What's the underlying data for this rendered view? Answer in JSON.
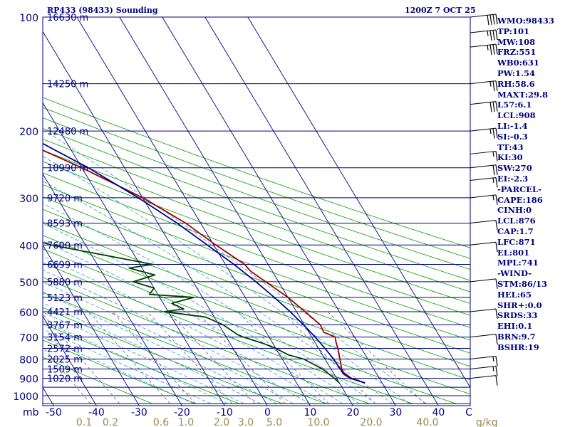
{
  "chart_data": {
    "type": "skew-t log-p sounding",
    "title_left": "RP433 (98433) Sounding",
    "title_right": "1200Z  7 OCT 25",
    "pressure_axis": {
      "unit_label": "mb",
      "ticks": [
        100,
        200,
        300,
        400,
        500,
        600,
        700,
        800,
        900,
        1000
      ],
      "range": [
        100,
        1050
      ]
    },
    "temperature_axis": {
      "unit_label": "C",
      "ticks": [
        -50,
        -40,
        -30,
        -20,
        -10,
        0,
        10,
        20,
        30,
        40
      ],
      "range": [
        -50,
        50
      ]
    },
    "mixing_ratio_labels": {
      "unit_label": "g/kg",
      "ticks": [
        "0.1",
        "0.2",
        "0.6",
        "1.0",
        "2.0",
        "3.0",
        "5.0",
        "10.0",
        "20.0",
        "40.0"
      ]
    },
    "height_levels": [
      {
        "p": 100,
        "label": "16630 m"
      },
      {
        "p": 150,
        "label": "14250 m"
      },
      {
        "p": 200,
        "label": "12480 m"
      },
      {
        "p": 250,
        "label": "10990 m"
      },
      {
        "p": 300,
        "label": "9720 m"
      },
      {
        "p": 350,
        "label": "8593 m"
      },
      {
        "p": 400,
        "label": "7600 m"
      },
      {
        "p": 450,
        "label": "6699 m"
      },
      {
        "p": 500,
        "label": "5880 m"
      },
      {
        "p": 550,
        "label": "5123 m"
      },
      {
        "p": 600,
        "label": "4421 m"
      },
      {
        "p": 650,
        "label": "3767 m"
      },
      {
        "p": 700,
        "label": "3154 m"
      },
      {
        "p": 750,
        "label": "2572 m"
      },
      {
        "p": 800,
        "label": "2025 m"
      },
      {
        "p": 850,
        "label": "1509 m"
      },
      {
        "p": 900,
        "label": "1020 m"
      }
    ],
    "series": [
      {
        "name": "temperature",
        "color": "#a00000",
        "points": [
          [
            925,
            26
          ],
          [
            900,
            23.5
          ],
          [
            870,
            22.5
          ],
          [
            850,
            22.5
          ],
          [
            800,
            23.5
          ],
          [
            750,
            24.5
          ],
          [
            720,
            25
          ],
          [
            700,
            25.5
          ],
          [
            680,
            23.5
          ],
          [
            650,
            23.7
          ],
          [
            600,
            22
          ],
          [
            550,
            20
          ],
          [
            500,
            17
          ],
          [
            470,
            15
          ],
          [
            450,
            14.5
          ],
          [
            400,
            10.5
          ],
          [
            350,
            6.5
          ],
          [
            300,
            0
          ],
          [
            250,
            -10
          ],
          [
            200,
            -24
          ],
          [
            170,
            -32
          ],
          [
            150,
            -38
          ],
          [
            130,
            -45
          ],
          [
            120,
            -50
          ],
          [
            115,
            -52
          ],
          [
            110,
            -53.5
          ],
          [
            100,
            -55
          ]
        ]
      },
      {
        "name": "dewpoint",
        "color": "#004000",
        "points": [
          [
            925,
            20
          ],
          [
            900,
            19.5
          ],
          [
            850,
            18
          ],
          [
            800,
            15
          ],
          [
            780,
            12
          ],
          [
            750,
            10
          ],
          [
            730,
            8
          ],
          [
            700,
            4
          ],
          [
            690,
            3
          ],
          [
            650,
            1
          ],
          [
            620,
            -2
          ],
          [
            600,
            -11
          ],
          [
            590,
            -6
          ],
          [
            570,
            -8
          ],
          [
            550,
            -2
          ],
          [
            540,
            -12
          ],
          [
            520,
            -10
          ],
          [
            500,
            -14
          ],
          [
            480,
            -8
          ],
          [
            460,
            -13
          ],
          [
            450,
            -7
          ],
          [
            400,
            -28
          ],
          [
            350,
            -42
          ],
          [
            310,
            -32
          ],
          [
            300,
            -39
          ],
          [
            270,
            -40
          ],
          [
            255,
            -38
          ],
          [
            240,
            -48
          ],
          [
            210,
            -52
          ],
          [
            190,
            -42
          ],
          [
            170,
            -55
          ],
          [
            140,
            -65
          ],
          [
            120,
            -70
          ],
          [
            113,
            -75
          ],
          [
            100,
            -72
          ]
        ]
      },
      {
        "name": "parcel",
        "color": "#0000a0",
        "points": [
          [
            925,
            26
          ],
          [
            900,
            23.2
          ],
          [
            876,
            22.2
          ],
          [
            850,
            22.2
          ],
          [
            800,
            22
          ],
          [
            750,
            21.5
          ],
          [
            700,
            20.8
          ],
          [
            650,
            19.8
          ],
          [
            600,
            18.5
          ],
          [
            550,
            16.8
          ],
          [
            500,
            14.7
          ],
          [
            450,
            12
          ],
          [
            400,
            8.5
          ],
          [
            350,
            4.5
          ],
          [
            300,
            -1
          ],
          [
            250,
            -8.5
          ],
          [
            200,
            -19.5
          ],
          [
            170,
            -28.5
          ],
          [
            150,
            -35.5
          ],
          [
            130,
            -44
          ],
          [
            120,
            -50
          ],
          [
            110,
            -57
          ],
          [
            104,
            -62
          ]
        ]
      }
    ],
    "wind_barbs": [
      {
        "p": 100,
        "spd": 40
      },
      {
        "p": 110,
        "spd": 35
      },
      {
        "p": 120,
        "spd": 35
      },
      {
        "p": 150,
        "spd": 25
      },
      {
        "p": 170,
        "spd": 30
      },
      {
        "p": 200,
        "spd": 25
      },
      {
        "p": 230,
        "spd": 15
      },
      {
        "p": 250,
        "spd": 20
      },
      {
        "p": 270,
        "spd": 15
      },
      {
        "p": 300,
        "spd": 15
      },
      {
        "p": 350,
        "spd": 10
      },
      {
        "p": 400,
        "spd": 10
      },
      {
        "p": 500,
        "spd": 10
      },
      {
        "p": 600,
        "spd": 10
      },
      {
        "p": 700,
        "spd": 10
      },
      {
        "p": 800,
        "spd": 15
      },
      {
        "p": 850,
        "spd": 15
      },
      {
        "p": 900,
        "spd": 10
      }
    ],
    "indices": [
      "WMO:98433",
      "TP:101",
      "MW:108",
      "FRZ:551",
      "WB0:631",
      "PW:1.54",
      "RH:58.6",
      "MAXT:29.8",
      "L57:6.1",
      "LCL:908",
      "LI:-1.4",
      "SI:-0.3",
      "TT:43",
      "KI:30",
      "SW:270",
      "EI:-2.3",
      "-PARCEL-",
      "CAPE:186",
      "CINH:0",
      "LCL:876",
      "CAP:1.7",
      "LFC:871",
      "EL:801",
      "MPL:741",
      "-WIND-",
      "STM:86/13",
      "HEL:65",
      "SHR+:0.0",
      "SRDS:33",
      "EHI:0.1",
      "BRN:9.7",
      "BSHR:19"
    ]
  },
  "colors": {
    "isobar": "#000080",
    "isotherm": "#000080",
    "dry_adiabat": "#00a000",
    "moist_adiabat": "#3399cc",
    "mixing_ratio": "#606060",
    "label_left": "#000080",
    "label_bottom": "#000080",
    "mixing_label": "#9a8a4a",
    "index_text": "#000080"
  }
}
